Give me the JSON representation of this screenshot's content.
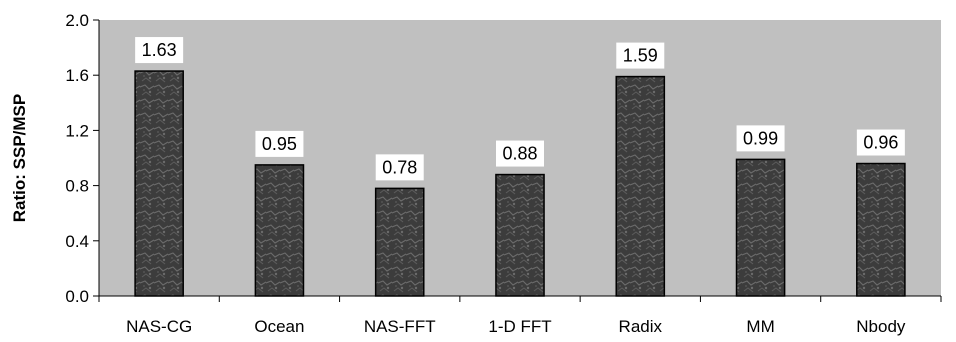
{
  "chart_data": {
    "type": "bar",
    "categories": [
      "NAS-CG",
      "Ocean",
      "NAS-FFT",
      "1-D FFT",
      "Radix",
      "MM",
      "Nbody"
    ],
    "values": [
      1.63,
      0.95,
      0.78,
      0.88,
      1.59,
      0.99,
      0.96
    ],
    "data_labels": [
      "1.63",
      "0.95",
      "0.78",
      "0.88",
      "1.59",
      "0.99",
      "0.96"
    ],
    "ylabel": "Ratio: SSP/MSP",
    "xlabel": "",
    "title": "",
    "ylim": [
      0,
      2.0
    ],
    "yticks": [
      0.0,
      0.4,
      0.8,
      1.2,
      1.6,
      2.0
    ],
    "ytick_labels": [
      "0.0",
      "0.4",
      "0.8",
      "1.2",
      "1.6",
      "2.0"
    ],
    "grid": false,
    "legend": "none",
    "colors": {
      "plot_background": "#c0c0c0",
      "bar_fill": "#3c3c3c",
      "bar_texture": "#7a7a7a",
      "label_background": "#ffffff",
      "axis": "#000000"
    }
  }
}
